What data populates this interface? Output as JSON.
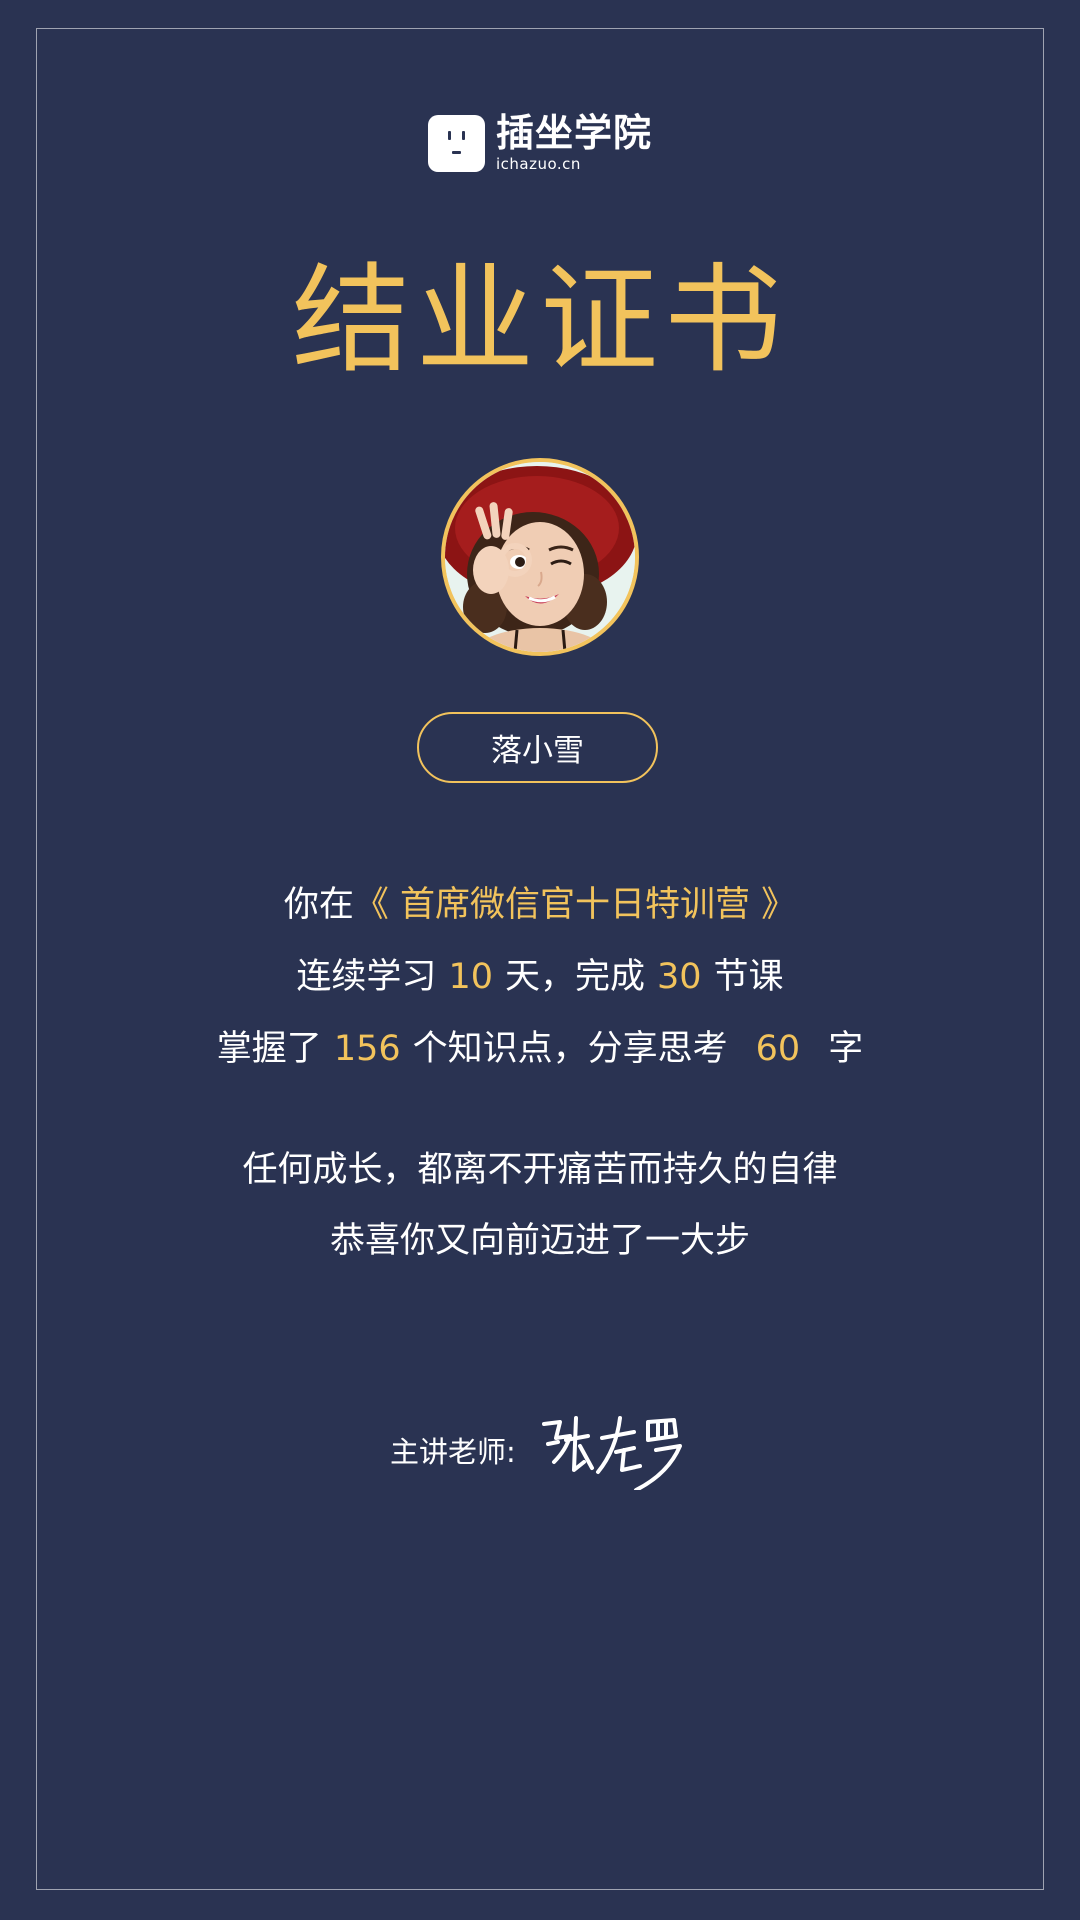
{
  "logo": {
    "name": "插坐学院",
    "domain": "ichazuo.cn",
    "icon": "outlet-face-icon"
  },
  "title": "结业证书",
  "avatar": {
    "icon": "user-avatar-illustration"
  },
  "student_name": "落小雪",
  "line1": {
    "prefix": "你在",
    "course": "《 首席微信官十日特训营 》"
  },
  "line2": {
    "part1": "连续学习",
    "days": "10",
    "part2": "天，完成",
    "lessons": "30",
    "part3": "节课"
  },
  "line3": {
    "part1": "掌握了",
    "points": "156",
    "part2": "个知识点，分享思考",
    "words": "60",
    "part3": "字"
  },
  "quote1": "任何成长，都离不开痛苦而持久的自律",
  "quote2": "恭喜你又向前迈进了一大步",
  "teacher": {
    "label": "主讲老师:",
    "signature": "张左罗"
  },
  "colors": {
    "background": "#2a3352",
    "accent": "#f2c35c",
    "text": "#ffffff"
  }
}
